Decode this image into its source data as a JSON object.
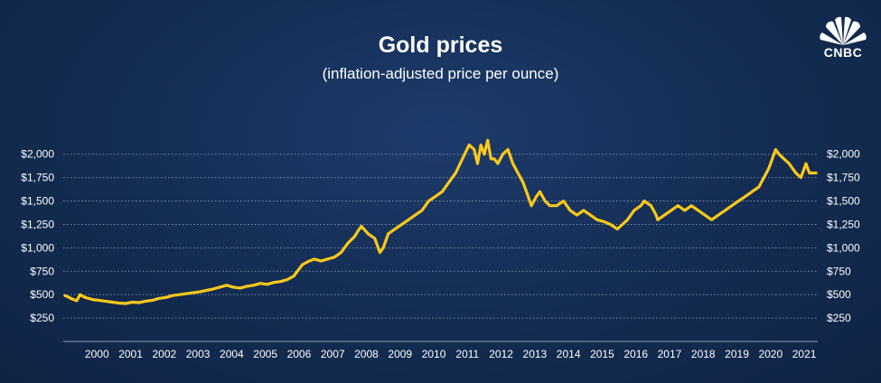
{
  "brand": {
    "name": "CNBC",
    "icon": "nbc-peacock-icon",
    "color": "#ffffff"
  },
  "chart_data": {
    "type": "line",
    "title": "Gold prices",
    "subtitle": "(inflation-adjusted price per ounce)",
    "xlabel": "",
    "ylabel": "",
    "x_ticks": [
      "2000",
      "2001",
      "2002",
      "2003",
      "2004",
      "2005",
      "2006",
      "2007",
      "2008",
      "2009",
      "2010",
      "2011",
      "2012",
      "2013",
      "2014",
      "2015",
      "2016",
      "2017",
      "2018",
      "2019",
      "2020",
      "2021"
    ],
    "y_ticks": [
      {
        "value": 250,
        "label": "$250"
      },
      {
        "value": 500,
        "label": "$500"
      },
      {
        "value": 750,
        "label": "$750"
      },
      {
        "value": 1000,
        "label": "$1,000"
      },
      {
        "value": 1250,
        "label": "$1,250"
      },
      {
        "value": 1500,
        "label": "$1,500"
      },
      {
        "value": 1750,
        "label": "$1,750"
      },
      {
        "value": 2000,
        "label": "$2,000"
      }
    ],
    "xlim": [
      1999.35,
      2021.75
    ],
    "ylim": [
      0,
      2200
    ],
    "grid": true,
    "line_color": "#fbc91b",
    "series": [
      {
        "name": "Gold price (inflation-adjusted)",
        "x": [
          1999.4,
          1999.5,
          1999.6,
          1999.75,
          1999.85,
          2000.0,
          2000.1,
          2000.25,
          2000.4,
          2000.6,
          2000.8,
          2001.0,
          2001.2,
          2001.4,
          2001.6,
          2001.8,
          2002.0,
          2002.2,
          2002.4,
          2002.6,
          2002.8,
          2003.0,
          2003.2,
          2003.4,
          2003.6,
          2003.8,
          2004.0,
          2004.2,
          2004.4,
          2004.6,
          2004.8,
          2005.0,
          2005.2,
          2005.4,
          2005.6,
          2005.8,
          2006.0,
          2006.2,
          2006.3,
          2006.45,
          2006.6,
          2006.8,
          2007.0,
          2007.2,
          2007.4,
          2007.6,
          2007.8,
          2008.0,
          2008.1,
          2008.2,
          2008.4,
          2008.6,
          2008.75,
          2008.85,
          2009.0,
          2009.2,
          2009.4,
          2009.6,
          2009.8,
          2010.0,
          2010.2,
          2010.4,
          2010.6,
          2010.8,
          2011.0,
          2011.2,
          2011.4,
          2011.55,
          2011.65,
          2011.75,
          2011.85,
          2011.95,
          2012.05,
          2012.15,
          2012.25,
          2012.4,
          2012.55,
          2012.7,
          2012.85,
          2013.0,
          2013.1,
          2013.25,
          2013.4,
          2013.5,
          2013.65,
          2013.8,
          2014.0,
          2014.2,
          2014.4,
          2014.6,
          2014.8,
          2015.0,
          2015.2,
          2015.4,
          2015.6,
          2015.8,
          2015.95,
          2016.1,
          2016.3,
          2016.5,
          2016.6,
          2016.8,
          2016.95,
          2017.0,
          2017.2,
          2017.4,
          2017.6,
          2017.8,
          2018.0,
          2018.2,
          2018.4,
          2018.6,
          2018.8,
          2019.0,
          2019.2,
          2019.4,
          2019.6,
          2019.8,
          2020.0,
          2020.15,
          2020.3,
          2020.5,
          2020.6,
          2020.75,
          2020.9,
          2021.0,
          2021.1,
          2021.25,
          2021.4,
          2021.5,
          2021.7
        ],
        "y": [
          490,
          475,
          455,
          435,
          500,
          470,
          460,
          445,
          440,
          430,
          420,
          410,
          405,
          420,
          415,
          430,
          440,
          460,
          470,
          490,
          500,
          510,
          520,
          530,
          545,
          560,
          580,
          600,
          580,
          570,
          590,
          600,
          620,
          610,
          630,
          640,
          660,
          700,
          750,
          820,
          850,
          880,
          860,
          880,
          900,
          950,
          1050,
          1120,
          1180,
          1230,
          1150,
          1100,
          950,
          1000,
          1150,
          1200,
          1250,
          1300,
          1350,
          1400,
          1500,
          1550,
          1600,
          1700,
          1800,
          1950,
          2100,
          2050,
          1900,
          2100,
          2000,
          2150,
          1950,
          1950,
          1900,
          2000,
          2050,
          1900,
          1800,
          1700,
          1600,
          1450,
          1550,
          1600,
          1500,
          1450,
          1450,
          1500,
          1400,
          1350,
          1400,
          1350,
          1300,
          1280,
          1250,
          1200,
          1250,
          1300,
          1400,
          1450,
          1500,
          1450,
          1350,
          1300,
          1350,
          1400,
          1450,
          1400,
          1450,
          1400,
          1350,
          1300,
          1350,
          1400,
          1450,
          1500,
          1550,
          1600,
          1650,
          1750,
          1850,
          2050,
          2000,
          1950,
          1900,
          1850,
          1800,
          1750,
          1900,
          1800,
          1800
        ]
      }
    ]
  }
}
